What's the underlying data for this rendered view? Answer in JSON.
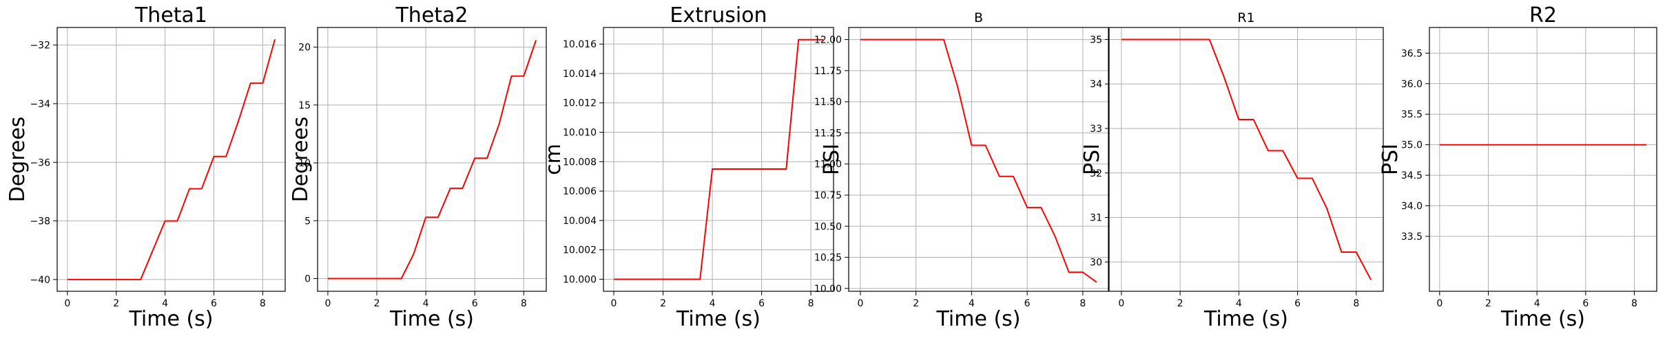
{
  "chart_data": [
    {
      "type": "line",
      "title": "Theta1",
      "xlabel": "Time (s)",
      "ylabel": "Degrees",
      "xlim": [
        -0.42,
        8.92
      ],
      "ylim": [
        -40.4,
        -31.4
      ],
      "xticks": [
        0,
        2,
        4,
        6,
        8
      ],
      "yticks": [
        -40,
        -38,
        -36,
        -34,
        -32
      ],
      "ytick_labels": [
        "−40",
        "−38",
        "−36",
        "−34",
        "−32"
      ],
      "grid": true,
      "line_color": "#ff0000",
      "x": [
        0,
        3.0,
        4.0,
        4.5,
        5.0,
        5.5,
        6.0,
        6.5,
        7.0,
        7.5,
        8.0,
        8.5
      ],
      "y": [
        -40.0,
        -40.0,
        -38.0,
        -38.0,
        -36.9,
        -36.9,
        -35.8,
        -35.8,
        -34.6,
        -33.3,
        -33.3,
        -31.8
      ]
    },
    {
      "type": "line",
      "title": "Theta2",
      "xlabel": "Time (s)",
      "ylabel": "Degrees",
      "xlim": [
        -0.42,
        8.92
      ],
      "ylim": [
        -1.1,
        21.7
      ],
      "xticks": [
        0,
        2,
        4,
        6,
        8
      ],
      "yticks": [
        0,
        5,
        10,
        15,
        20
      ],
      "ytick_labels": [
        "0",
        "5",
        "10",
        "15",
        "20"
      ],
      "grid": true,
      "line_color": "#ff0000",
      "x": [
        0,
        3.0,
        3.5,
        4.0,
        4.5,
        5.0,
        5.5,
        6.0,
        6.5,
        7.0,
        7.5,
        8.0,
        8.5
      ],
      "y": [
        0,
        0,
        2.1,
        5.3,
        5.3,
        7.8,
        7.8,
        10.4,
        10.4,
        13.4,
        17.5,
        17.5,
        20.6
      ]
    },
    {
      "type": "line",
      "title": "Extrusion",
      "xlabel": "Time (s)",
      "ylabel": "cm",
      "xlim": [
        -0.42,
        8.92
      ],
      "ylim": [
        9.99918,
        10.01713
      ],
      "xticks": [
        0,
        2,
        4,
        6,
        8
      ],
      "yticks": [
        10.0,
        10.002,
        10.004,
        10.006,
        10.008,
        10.01,
        10.012,
        10.014,
        10.016
      ],
      "ytick_labels": [
        "10.000",
        "10.002",
        "10.004",
        "10.006",
        "10.008",
        "10.010",
        "10.012",
        "10.014",
        "10.016"
      ],
      "grid": true,
      "line_color": "#ff0000",
      "x": [
        0,
        3.5,
        4.0,
        7.0,
        7.5,
        8.5
      ],
      "y": [
        10.0,
        10.0,
        10.0075,
        10.0075,
        10.0163,
        10.0163
      ]
    },
    {
      "type": "line",
      "title": "B",
      "xlabel": "Time (s)",
      "ylabel": "PSI",
      "xlim": [
        -0.42,
        8.92
      ],
      "ylim": [
        9.977,
        12.097
      ],
      "xticks": [
        0,
        2,
        4,
        6,
        8
      ],
      "yticks": [
        10.0,
        10.25,
        10.5,
        10.75,
        11.0,
        11.25,
        11.5,
        11.75,
        12.0
      ],
      "ytick_labels": [
        "10.00",
        "10.25",
        "10.50",
        "10.75",
        "11.00",
        "11.25",
        "11.50",
        "11.75",
        "12.00"
      ],
      "grid": true,
      "line_color": "#ff0000",
      "x": [
        0,
        3.0,
        3.5,
        4.0,
        4.5,
        5.0,
        5.5,
        6.0,
        6.5,
        7.0,
        7.5,
        8.0,
        8.5
      ],
      "y": [
        12.0,
        12.0,
        11.62,
        11.15,
        11.15,
        10.9,
        10.9,
        10.65,
        10.65,
        10.42,
        10.13,
        10.13,
        10.05
      ]
    },
    {
      "type": "line",
      "title": "R1",
      "xlabel": "Time (s)",
      "ylabel": "PSI",
      "xlim": [
        -0.42,
        8.92
      ],
      "ylim": [
        29.34,
        35.27
      ],
      "xticks": [
        0,
        2,
        4,
        6,
        8
      ],
      "yticks": [
        30,
        31,
        32,
        33,
        34,
        35
      ],
      "ytick_labels": [
        "30",
        "31",
        "32",
        "33",
        "34",
        "35"
      ],
      "grid": true,
      "line_color": "#ff0000",
      "x": [
        0,
        3.0,
        3.5,
        4.0,
        4.5,
        5.0,
        5.5,
        6.0,
        6.5,
        7.0,
        7.5,
        8.0,
        8.5
      ],
      "y": [
        35.0,
        35.0,
        34.15,
        33.2,
        33.2,
        32.5,
        32.5,
        31.88,
        31.88,
        31.2,
        30.22,
        30.22,
        29.6
      ]
    },
    {
      "type": "line",
      "title": "R2",
      "xlabel": "Time (s)",
      "ylabel": "PSI",
      "xlim": [
        -0.42,
        8.92
      ],
      "ylim": [
        32.6,
        36.92
      ],
      "xticks": [
        0,
        2,
        4,
        6,
        8
      ],
      "yticks": [
        33.5,
        34.0,
        34.5,
        35.0,
        35.5,
        36.0,
        36.5
      ],
      "ytick_labels": [
        "33.5",
        "34.0",
        "34.5",
        "35.0",
        "35.5",
        "36.0",
        "36.5"
      ],
      "grid": true,
      "line_color": "#ff0000",
      "x": [
        0,
        8.5
      ],
      "y": [
        35.0,
        35.0
      ]
    }
  ]
}
